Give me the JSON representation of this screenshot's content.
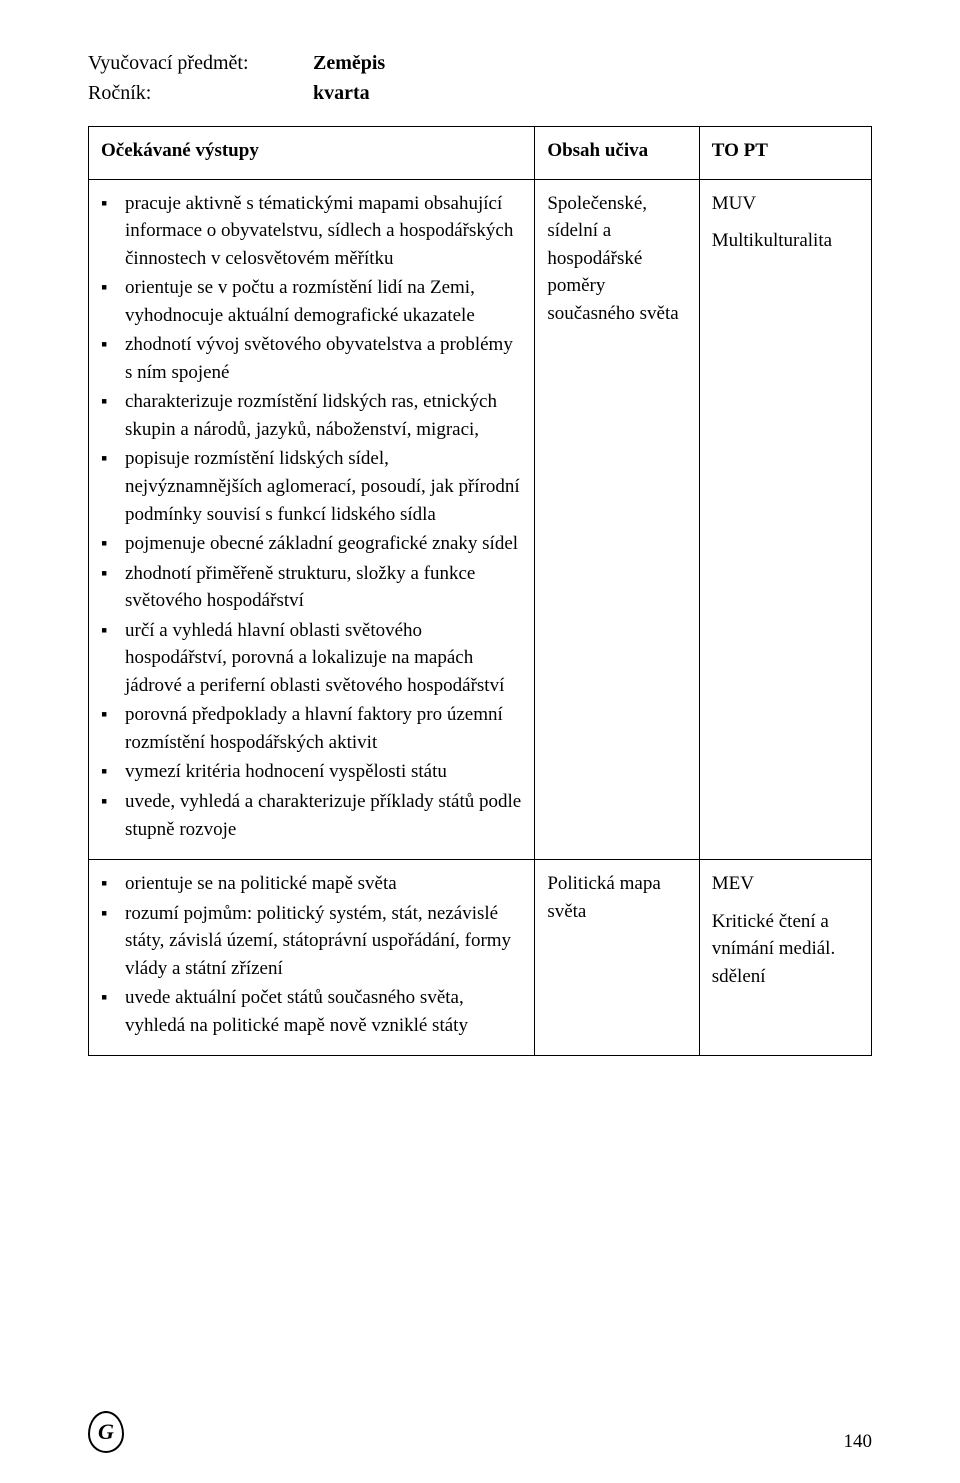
{
  "header": {
    "subject_label": "Vyučovací předmět:",
    "subject_value": "Zeměpis",
    "year_label": "Ročník:",
    "year_value": "kvarta"
  },
  "table": {
    "headers": [
      "Očekávané výstupy",
      "Obsah učiva",
      "TO PT"
    ],
    "rows": [
      {
        "outcomes": [
          "pracuje aktivně s tématickými mapami obsahující informace o obyvatelstvu, sídlech a hospodářských činnostech v celosvětovém měřítku",
          "orientuje se v počtu a rozmístění lidí na Zemi, vyhodnocuje aktuální demografické ukazatele",
          "zhodnotí vývoj světového obyvatelstva a problémy s ním spojené",
          "charakterizuje rozmístění lidských ras, etnických skupin a národů, jazyků, náboženství, migraci,",
          "popisuje rozmístění lidských sídel, nejvýznamnějších aglomerací, posoudí, jak přírodní podmínky souvisí s funkcí lidského sídla",
          "pojmenuje obecné základní geografické znaky sídel",
          "zhodnotí přiměřeně strukturu, složky a funkce světového hospodářství",
          "určí a vyhledá hlavní oblasti světového hospodářství, porovná a lokalizuje na mapách jádrové a periferní oblasti světového hospodářství",
          "porovná předpoklady a hlavní faktory pro územní rozmístění hospodářských aktivit",
          "vymezí kritéria hodnocení vyspělosti státu",
          "uvede, vyhledá a charakterizuje příklady států podle stupně rozvoje"
        ],
        "content": "Společenské, sídelní a hospodářské poměry současného světa",
        "topt": [
          "MUV",
          "Multikulturalita"
        ]
      },
      {
        "outcomes": [
          "orientuje se na politické mapě světa",
          "rozumí pojmům:  politický systém, stát, nezávislé státy, závislá území, státoprávní uspořádání, formy vlády a státní zřízení",
          "uvede aktuální počet států současného světa, vyhledá na politické mapě nově vzniklé státy"
        ],
        "content": "Politická mapa světa",
        "topt": [
          "MEV",
          "Kritické čtení a vnímání mediál. sdělení"
        ]
      }
    ]
  },
  "footer": {
    "logo_glyph": "G",
    "page_number": "140"
  }
}
